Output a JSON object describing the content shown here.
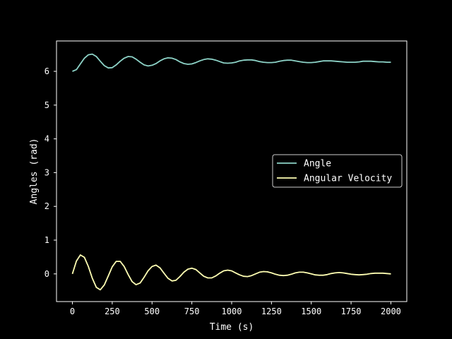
{
  "chart_data": {
    "type": "line",
    "title": "",
    "xlabel": "Time (s)",
    "ylabel": "Angles (rad)",
    "xlim": [
      -100,
      2100
    ],
    "ylim": [
      -0.82,
      6.9
    ],
    "xticks": [
      0,
      250,
      500,
      750,
      1000,
      1250,
      1500,
      1750,
      2000
    ],
    "yticks": [
      0,
      1,
      2,
      3,
      4,
      5,
      6
    ],
    "grid": false,
    "legend_position": "center-right",
    "background": "#000000",
    "foreground": "#ffffff",
    "series": [
      {
        "name": "Angle",
        "color": "#8dd3c7",
        "x": [
          0,
          25,
          50,
          75,
          100,
          125,
          150,
          175,
          200,
          225,
          250,
          275,
          300,
          325,
          350,
          375,
          400,
          425,
          450,
          475,
          500,
          525,
          550,
          575,
          600,
          625,
          650,
          675,
          700,
          725,
          750,
          775,
          800,
          825,
          850,
          875,
          900,
          925,
          950,
          975,
          1000,
          1025,
          1050,
          1075,
          1100,
          1125,
          1150,
          1175,
          1200,
          1225,
          1250,
          1275,
          1300,
          1325,
          1350,
          1375,
          1400,
          1425,
          1450,
          1475,
          1500,
          1525,
          1550,
          1575,
          1600,
          1625,
          1650,
          1675,
          1700,
          1725,
          1750,
          1775,
          1800,
          1825,
          1850,
          1875,
          1900,
          1925,
          1950,
          1975,
          2000
        ],
        "y": [
          6.0,
          6.05,
          6.22,
          6.39,
          6.49,
          6.51,
          6.44,
          6.3,
          6.17,
          6.1,
          6.11,
          6.19,
          6.3,
          6.39,
          6.44,
          6.43,
          6.36,
          6.27,
          6.19,
          6.16,
          6.18,
          6.23,
          6.31,
          6.37,
          6.4,
          6.39,
          6.35,
          6.28,
          6.23,
          6.21,
          6.22,
          6.26,
          6.31,
          6.35,
          6.37,
          6.36,
          6.33,
          6.29,
          6.25,
          6.24,
          6.25,
          6.27,
          6.31,
          6.33,
          6.34,
          6.34,
          6.32,
          6.29,
          6.27,
          6.26,
          6.26,
          6.27,
          6.3,
          6.32,
          6.33,
          6.33,
          6.31,
          6.29,
          6.27,
          6.26,
          6.26,
          6.27,
          6.29,
          6.31,
          6.31,
          6.31,
          6.3,
          6.29,
          6.28,
          6.27,
          6.27,
          6.27,
          6.28,
          6.3,
          6.3,
          6.3,
          6.29,
          6.28,
          6.28,
          6.27,
          6.27
        ]
      },
      {
        "name": "Angular Velocity",
        "color": "#ffffb3",
        "x": [
          0,
          25,
          50,
          75,
          100,
          125,
          150,
          175,
          200,
          225,
          250,
          275,
          300,
          325,
          350,
          375,
          400,
          425,
          450,
          475,
          500,
          525,
          550,
          575,
          600,
          625,
          650,
          675,
          700,
          725,
          750,
          775,
          800,
          825,
          850,
          875,
          900,
          925,
          950,
          975,
          1000,
          1025,
          1050,
          1075,
          1100,
          1125,
          1150,
          1175,
          1200,
          1225,
          1250,
          1275,
          1300,
          1325,
          1350,
          1375,
          1400,
          1425,
          1450,
          1475,
          1500,
          1525,
          1550,
          1575,
          1600,
          1625,
          1650,
          1675,
          1700,
          1725,
          1750,
          1775,
          1800,
          1825,
          1850,
          1875,
          1900,
          1925,
          1950,
          1975,
          2000
        ],
        "y": [
          0.0,
          0.38,
          0.56,
          0.49,
          0.22,
          -0.13,
          -0.4,
          -0.47,
          -0.33,
          -0.06,
          0.21,
          0.37,
          0.37,
          0.22,
          -0.02,
          -0.23,
          -0.32,
          -0.27,
          -0.1,
          0.09,
          0.22,
          0.26,
          0.18,
          0.02,
          -0.13,
          -0.21,
          -0.19,
          -0.08,
          0.05,
          0.14,
          0.17,
          0.13,
          0.03,
          -0.07,
          -0.12,
          -0.12,
          -0.06,
          0.02,
          0.09,
          0.11,
          0.09,
          0.03,
          -0.03,
          -0.07,
          -0.08,
          -0.05,
          0.0,
          0.05,
          0.07,
          0.06,
          0.03,
          -0.01,
          -0.04,
          -0.05,
          -0.04,
          -0.01,
          0.03,
          0.05,
          0.05,
          0.03,
          0.0,
          -0.03,
          -0.04,
          -0.04,
          -0.02,
          0.01,
          0.03,
          0.04,
          0.03,
          0.01,
          -0.01,
          -0.02,
          -0.03,
          -0.02,
          -0.01,
          0.01,
          0.02,
          0.02,
          0.02,
          0.01,
          0.0
        ]
      }
    ]
  }
}
